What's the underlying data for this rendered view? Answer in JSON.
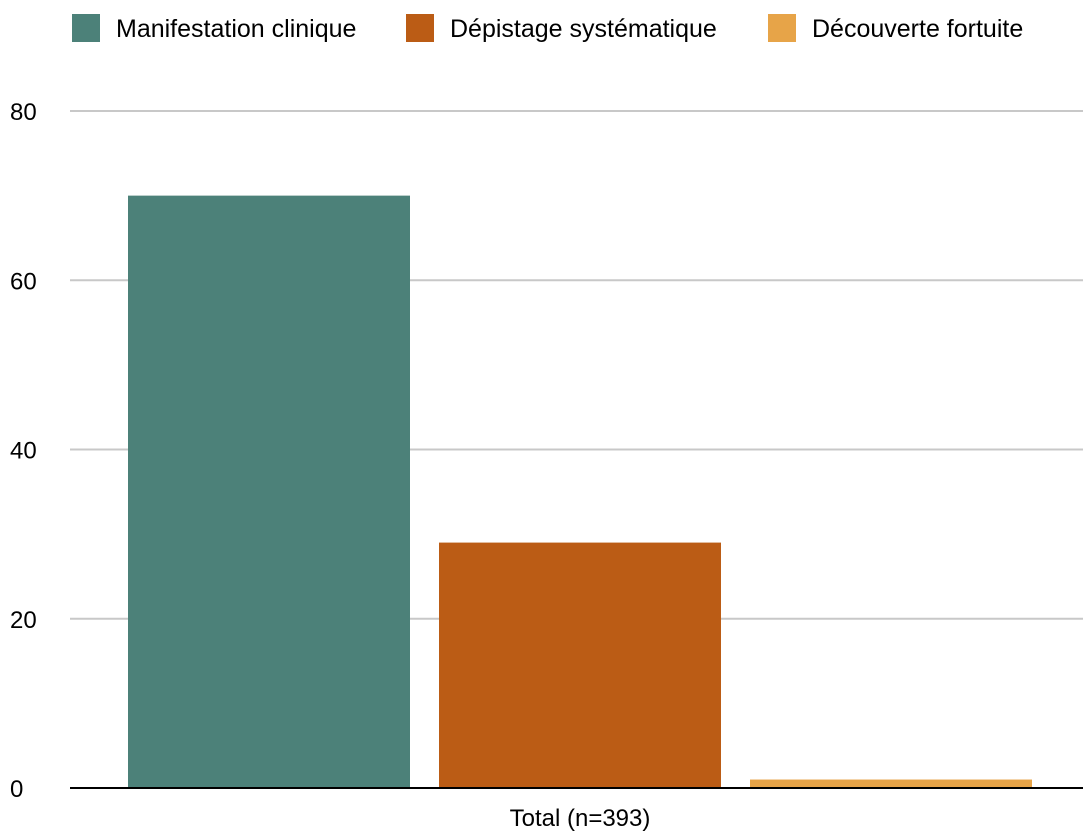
{
  "chart_data": {
    "type": "bar",
    "categories": [
      "Total (n=393)"
    ],
    "series": [
      {
        "name": "Manifestation clinique",
        "values": [
          70
        ],
        "color": "#4c8179"
      },
      {
        "name": "Dépistage systématique",
        "values": [
          29
        ],
        "color": "#bb5c15"
      },
      {
        "name": "Découverte fortuite",
        "values": [
          1
        ],
        "color": "#e7a448"
      }
    ],
    "yticks": [
      "0",
      "20",
      "40",
      "60",
      "80"
    ],
    "ylim": [
      0,
      80
    ],
    "grid": true,
    "legend_position": "top",
    "gridline_color": "#c8c8c8",
    "axis_color": "#000000"
  }
}
